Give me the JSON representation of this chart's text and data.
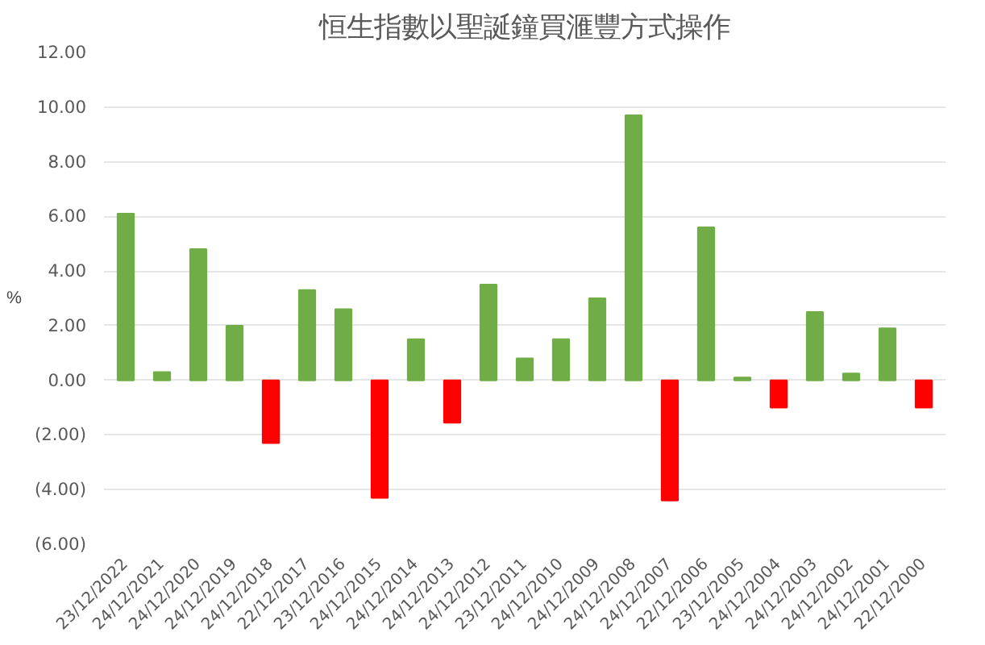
{
  "chart_data": {
    "type": "bar",
    "title": "恒生指數以聖誕鐘買滙豐方式操作",
    "ylabel": "%",
    "categories": [
      "23/12/2022",
      "24/12/2021",
      "24/12/2020",
      "24/12/2019",
      "24/12/2018",
      "22/12/2017",
      "23/12/2016",
      "24/12/2015",
      "24/12/2014",
      "24/12/2013",
      "24/12/2012",
      "23/12/2011",
      "24/12/2010",
      "24/12/2009",
      "24/12/2008",
      "24/12/2007",
      "22/12/2006",
      "23/12/2005",
      "24/12/2004",
      "24/12/2003",
      "24/12/2002",
      "24/12/2001",
      "22/12/2000"
    ],
    "values": [
      6.1,
      0.3,
      4.8,
      2.0,
      -2.3,
      3.3,
      2.6,
      -4.3,
      1.5,
      -1.55,
      3.5,
      0.8,
      1.5,
      3.0,
      9.7,
      -4.4,
      5.6,
      0.1,
      -1.0,
      2.5,
      0.25,
      1.9,
      -1.0
    ],
    "colors": [
      "#70ad47",
      "#70ad47",
      "#70ad47",
      "#70ad47",
      "#ff0000",
      "#70ad47",
      "#70ad47",
      "#ff0000",
      "#70ad47",
      "#ff0000",
      "#70ad47",
      "#70ad47",
      "#70ad47",
      "#70ad47",
      "#70ad47",
      "#ff0000",
      "#70ad47",
      "#70ad47",
      "#ff0000",
      "#70ad47",
      "#70ad47",
      "#70ad47",
      "#ff0000"
    ],
    "ylim": [
      -6,
      12
    ],
    "yticks": [
      {
        "value": -6,
        "label": "(6.00)"
      },
      {
        "value": -4,
        "label": "(4.00)"
      },
      {
        "value": -2,
        "label": "(2.00)"
      },
      {
        "value": 0,
        "label": "0.00"
      },
      {
        "value": 2,
        "label": "2.00"
      },
      {
        "value": 4,
        "label": "4.00"
      },
      {
        "value": 6,
        "label": "6.00"
      },
      {
        "value": 8,
        "label": "8.00"
      },
      {
        "value": 10,
        "label": "10.00"
      },
      {
        "value": 12,
        "label": "12.00"
      }
    ],
    "grid": "y"
  }
}
